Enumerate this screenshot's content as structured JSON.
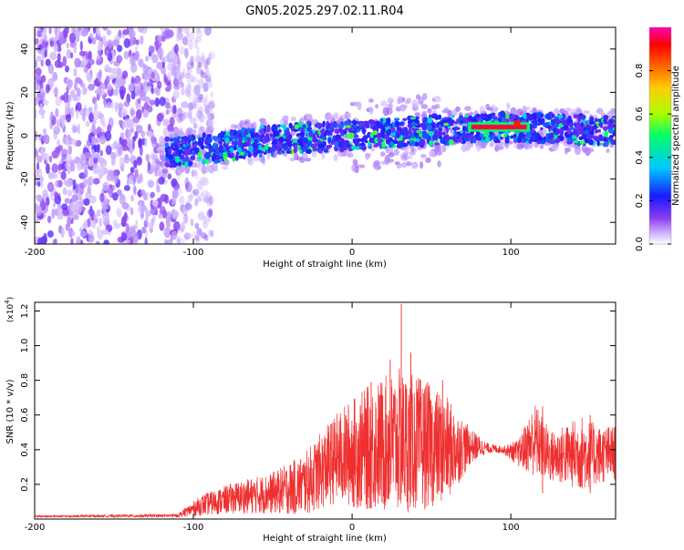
{
  "page": {
    "title": "GN05.2025.297.02.11.R04"
  },
  "chart_data": [
    {
      "id": "spectrogram",
      "type": "heatmap",
      "title": "GN05.2025.297.02.11.R04",
      "xlabel": "Height of straight line (km)",
      "ylabel": "Frequency (Hz)",
      "xlim": [
        -200,
        166
      ],
      "ylim": [
        -50,
        50
      ],
      "xticks": [
        -200,
        -100,
        0,
        100
      ],
      "yticks": [
        -40,
        -20,
        0,
        20,
        40
      ],
      "colorbar": {
        "label": "Normalized spectral amplitude",
        "range": [
          0,
          1
        ],
        "ticks": [
          "0.0",
          "0.2",
          "0.4",
          "0.6",
          "0.8"
        ],
        "tick_values": [
          0.0,
          0.2,
          0.4,
          0.6,
          0.8
        ],
        "colors": [
          "#ffffff",
          "#ccb3ff",
          "#8a3cf0",
          "#1a1aff",
          "#00c8ff",
          "#00ff66",
          "#aaff00",
          "#ffcc00",
          "#ff6600",
          "#ff0000",
          "#ff00b4"
        ]
      },
      "regions": [
        {
          "name": "noise",
          "x_range": [
            -200,
            -100
          ],
          "freq_range": [
            -50,
            50
          ],
          "amplitude": 0.2
        },
        {
          "name": "signal-band",
          "x_range": [
            -125,
            166
          ],
          "center_freq": [
            -8,
            -6,
            -2,
            0,
            2,
            3,
            4,
            3,
            2
          ],
          "center_x": [
            -120,
            -90,
            -50,
            0,
            40,
            60,
            100,
            130,
            166
          ],
          "amplitude": 0.5
        },
        {
          "name": "strong-line",
          "x_range": [
            75,
            110
          ],
          "freq": 4,
          "amplitude": 0.95
        }
      ]
    },
    {
      "id": "snr",
      "type": "line",
      "xlabel": "Height of straight line (km)",
      "ylabel": "SNR (10 * v/v)",
      "y_multiplier": "(x10",
      "y_multiplier_exp": "4",
      "y_multiplier_close": ")",
      "xlim": [
        -200,
        166
      ],
      "ylim": [
        0,
        12500
      ],
      "xticks": [
        -200,
        -100,
        0,
        100
      ],
      "yticks": [
        2000,
        4000,
        6000,
        8000,
        10000,
        12000
      ],
      "ytick_labels": [
        "0.2",
        "0.4",
        "0.6",
        "0.8",
        "1.0",
        "1.2"
      ],
      "color": "#ee3030",
      "envelope": {
        "x": [
          -200,
          -110,
          -95,
          -75,
          -50,
          -30,
          -10,
          0,
          15,
          30,
          45,
          60,
          75,
          85,
          95,
          105,
          115,
          125,
          135,
          145,
          155,
          166
        ],
        "mean": [
          150,
          200,
          800,
          1200,
          1500,
          2000,
          3500,
          3800,
          4200,
          4500,
          4300,
          4000,
          4200,
          4100,
          4000,
          3800,
          4600,
          3600,
          3700,
          3800,
          3700,
          3800
        ],
        "amp": [
          50,
          100,
          600,
          900,
          1200,
          1800,
          2600,
          3200,
          3800,
          4200,
          3800,
          3000,
          1000,
          300,
          200,
          800,
          2200,
          1500,
          1800,
          2200,
          1700,
          1600
        ]
      },
      "peaks": [
        {
          "x": 31,
          "y": 12400
        },
        {
          "x": 24,
          "y": 9200
        },
        {
          "x": 37,
          "y": 9600
        },
        {
          "x": 57,
          "y": 8000
        },
        {
          "x": 12,
          "y": 7900
        },
        {
          "x": 120,
          "y": 6500
        },
        {
          "x": 150,
          "y": 6000
        }
      ]
    }
  ]
}
